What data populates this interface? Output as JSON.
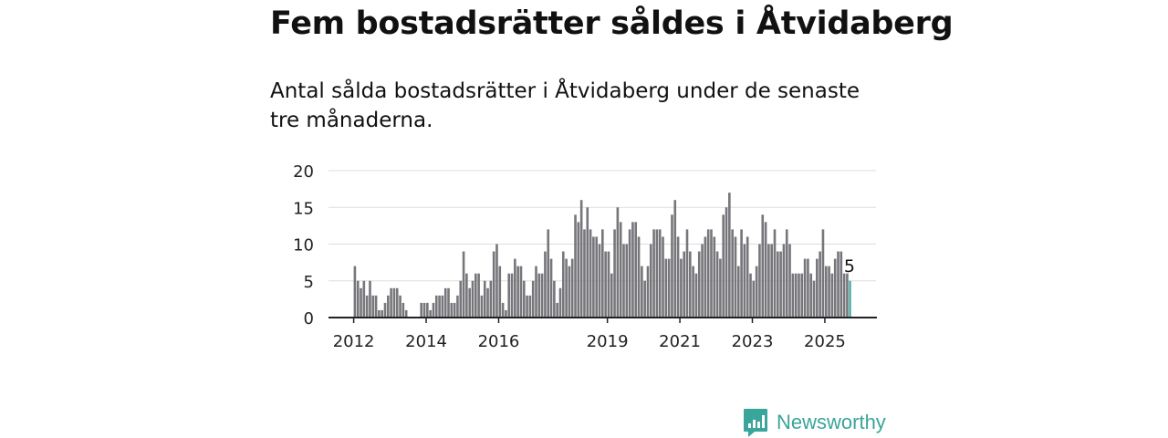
{
  "header": {
    "title": "Fem bostadsrätter såldes i Åtvidaberg",
    "subtitle": "Antal sålda bostadsrätter i Åtvidaberg under de senaste tre månaderna."
  },
  "brand": {
    "name": "Newsworthy",
    "icon": "newsworthy-logo-icon",
    "color": "#3aa59a"
  },
  "chart_data": {
    "type": "bar",
    "x_start": "2012-01",
    "x_ticks": [
      "2012",
      "2014",
      "2016",
      "2019",
      "2021",
      "2023",
      "2025"
    ],
    "y_ticks": [
      0,
      5,
      10,
      15,
      20
    ],
    "ylim": [
      0,
      20
    ],
    "grid": true,
    "bar_color": "#76767b",
    "highlight_color": "#3aa59a",
    "highlight_label": "5",
    "values": [
      7,
      5,
      4,
      5,
      3,
      5,
      3,
      3,
      1,
      1,
      2,
      3,
      4,
      4,
      4,
      3,
      2,
      1,
      null,
      null,
      null,
      null,
      2,
      2,
      2,
      1,
      2,
      3,
      3,
      3,
      4,
      4,
      2,
      2,
      3,
      5,
      9,
      6,
      4,
      5,
      6,
      6,
      3,
      5,
      4,
      5,
      9,
      10,
      7,
      2,
      1,
      6,
      6,
      8,
      7,
      7,
      5,
      3,
      3,
      5,
      7,
      6,
      6,
      9,
      12,
      8,
      5,
      2,
      4,
      9,
      8,
      7,
      8,
      14,
      13,
      16,
      12,
      15,
      12,
      11,
      11,
      10,
      12,
      9,
      9,
      6,
      12,
      15,
      13,
      10,
      10,
      12,
      13,
      13,
      11,
      7,
      5,
      7,
      10,
      12,
      12,
      12,
      11,
      8,
      8,
      14,
      16,
      11,
      8,
      9,
      12,
      9,
      7,
      6,
      9,
      10,
      11,
      12,
      12,
      11,
      9,
      8,
      14,
      15,
      17,
      12,
      11,
      7,
      12,
      10,
      11,
      6,
      5,
      7,
      10,
      14,
      13,
      10,
      10,
      12,
      9,
      9,
      10,
      12,
      10,
      6,
      6,
      6,
      6,
      8,
      8,
      6,
      5,
      8,
      9,
      12,
      7,
      7,
      6,
      8,
      9,
      9,
      6,
      6,
      5
    ]
  }
}
